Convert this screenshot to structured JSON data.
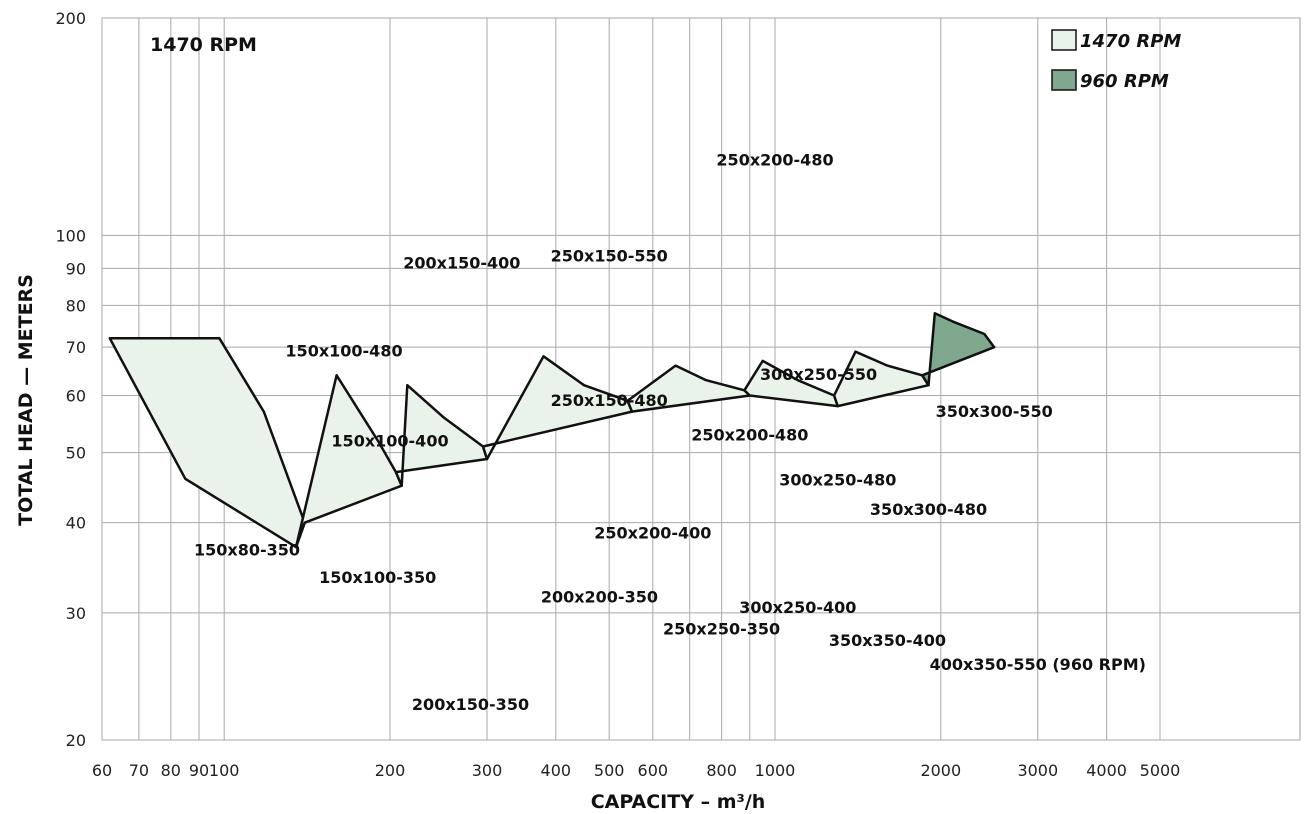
{
  "chart_data": {
    "type": "area",
    "title": "1470 RPM",
    "xlabel": "CAPACITY –  m³/h",
    "ylabel": "TOTAL HEAD — METERS",
    "x_scale": "log",
    "x_ticks": [
      {
        "value": 60,
        "label": "60"
      },
      {
        "value": 70,
        "label": "70"
      },
      {
        "value": 80,
        "label": "80"
      },
      {
        "value": 90,
        "label": "90"
      },
      {
        "value": 100,
        "label": "100"
      },
      {
        "value": 200,
        "label": "200"
      },
      {
        "value": 300,
        "label": "300"
      },
      {
        "value": 400,
        "label": "400"
      },
      {
        "value": 500,
        "label": "500"
      },
      {
        "value": 600,
        "label": "600"
      },
      {
        "value": 800,
        "label": "800"
      },
      {
        "value": 1000,
        "label": "1000"
      },
      {
        "value": 2000,
        "label": "2000"
      },
      {
        "value": 3000,
        "label": "3000"
      },
      {
        "value": 4000,
        "label": "4000"
      },
      {
        "value": 5000,
        "label": "5000"
      }
    ],
    "x_gridlines": [
      60,
      70,
      80,
      90,
      100,
      200,
      300,
      400,
      500,
      600,
      700,
      800,
      900,
      1000,
      2000,
      3000,
      4000,
      5000
    ],
    "y_ticks": [
      {
        "value": 20,
        "label": "20"
      },
      {
        "value": 30,
        "label": "30"
      },
      {
        "value": 40,
        "label": "40"
      },
      {
        "value": 50,
        "label": "50"
      },
      {
        "value": 60,
        "label": "60"
      },
      {
        "value": 70,
        "label": "70"
      },
      {
        "value": 80,
        "label": "80"
      },
      {
        "value": 90,
        "label": "90"
      },
      {
        "value": 100,
        "label": "100"
      },
      {
        "value": 200,
        "label": "200"
      }
    ],
    "y_gridlines": [
      20,
      30,
      40,
      50,
      60,
      70,
      80,
      90,
      100,
      200
    ],
    "legend": {
      "position": "top-right",
      "items": [
        {
          "label": "1470 RPM",
          "color": "#eaf3ea"
        },
        {
          "label": "960 RPM",
          "color": "#7fa88e"
        }
      ]
    },
    "regions": [
      {
        "label": "150x80-350",
        "rpm": "1470",
        "points": [
          [
            62,
            72
          ],
          [
            85,
            46
          ],
          [
            135,
            37
          ],
          [
            140,
            40
          ],
          [
            118,
            57
          ],
          [
            98,
            72
          ]
        ]
      },
      {
        "label": "150x100-350",
        "rpm": "1470",
        "points": [
          [
            135,
            37
          ],
          [
            140,
            40
          ],
          [
            210,
            45
          ],
          [
            205,
            47
          ],
          [
            190,
            52
          ],
          [
            160,
            64
          ]
        ]
      },
      {
        "label": "200x150-350",
        "rpm": "1470",
        "points": [
          [
            210,
            45
          ],
          [
            205,
            47
          ],
          [
            300,
            49
          ],
          [
            295,
            51
          ],
          [
            250,
            56
          ],
          [
            215,
            62
          ]
        ]
      },
      {
        "label": "200x200-350",
        "rpm": "1470",
        "points": [
          [
            300,
            49
          ],
          [
            295,
            51
          ],
          [
            550,
            57
          ],
          [
            540,
            59
          ],
          [
            450,
            62
          ],
          [
            380,
            68
          ]
        ]
      },
      {
        "label": "250x250-350",
        "rpm": "1470",
        "points": [
          [
            540,
            59
          ],
          [
            550,
            57
          ],
          [
            900,
            60
          ],
          [
            880,
            61
          ],
          [
            750,
            63
          ],
          [
            660,
            66
          ]
        ]
      },
      {
        "label": "300x250-400",
        "rpm": "1470",
        "points": [
          [
            880,
            61
          ],
          [
            900,
            60
          ],
          [
            1300,
            58
          ],
          [
            1280,
            60
          ],
          [
            1100,
            63
          ],
          [
            950,
            67
          ]
        ]
      },
      {
        "label": "350x350-400",
        "rpm": "1470",
        "points": [
          [
            1280,
            60
          ],
          [
            1300,
            58
          ],
          [
            1900,
            62
          ],
          [
            1850,
            64
          ],
          [
            1600,
            66
          ],
          [
            1400,
            69
          ]
        ]
      },
      {
        "label": "400x350-550",
        "rpm": "960",
        "points": [
          [
            1900,
            62
          ],
          [
            1850,
            64
          ],
          [
            2500,
            70
          ],
          [
            2400,
            73
          ],
          [
            2100,
            76
          ],
          [
            1950,
            78
          ]
        ]
      }
    ],
    "annotations": [
      {
        "text": "250x200-480",
        "x": 1000,
        "y": 125
      },
      {
        "text": "200x150-400",
        "x": 270,
        "y": 90
      },
      {
        "text": "250x150-550",
        "x": 500,
        "y": 92
      },
      {
        "text": "150x100-480",
        "x": 165,
        "y": 68
      },
      {
        "text": "300x250-550",
        "x": 1200,
        "y": 63
      },
      {
        "text": "350x300-550",
        "x": 2500,
        "y": 56
      },
      {
        "text": "250x150-480",
        "x": 500,
        "y": 58
      },
      {
        "text": "250x200-480",
        "x": 900,
        "y": 52
      },
      {
        "text": "150x100-400",
        "x": 200,
        "y": 51
      },
      {
        "text": "300x250-480",
        "x": 1300,
        "y": 45
      },
      {
        "text": "350x300-480",
        "x": 1900,
        "y": 41
      },
      {
        "text": "250x200-400",
        "x": 600,
        "y": 38
      },
      {
        "text": "150x80-350",
        "x": 110,
        "y": 36
      },
      {
        "text": "150x100-350",
        "x": 190,
        "y": 33
      },
      {
        "text": "200x200-350",
        "x": 480,
        "y": 31
      },
      {
        "text": "300x250-400",
        "x": 1100,
        "y": 30
      },
      {
        "text": "250x250-350",
        "x": 800,
        "y": 28
      },
      {
        "text": "350x350-400",
        "x": 1600,
        "y": 27
      },
      {
        "text": "400x350-550 (960 RPM)",
        "x": 3000,
        "y": 25
      },
      {
        "text": "200x150-350",
        "x": 280,
        "y": 22
      }
    ]
  }
}
